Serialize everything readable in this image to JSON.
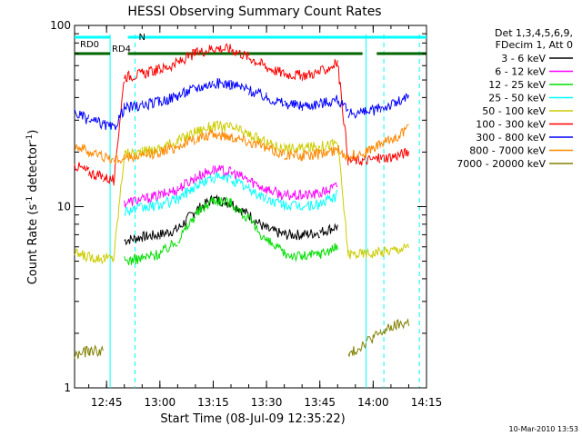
{
  "chart_data": {
    "type": "line",
    "title": "HESSI Observing Summary Count Rates",
    "xlabel": "Start Time (08-Jul-09 12:35:22)",
    "ylabel_main": "Count Rate (s",
    "ylabel_sup1": "-1",
    "ylabel_mid": " detector",
    "ylabel_sup2": "-1",
    "ylabel_end": ")",
    "yscale": "log",
    "ylim": [
      1,
      100
    ],
    "xlim_minutes": [
      36.0,
      135.0
    ],
    "x_ticks": [
      {
        "label": "12:45",
        "minute": 45
      },
      {
        "label": "13:00",
        "minute": 60
      },
      {
        "label": "13:15",
        "minute": 75
      },
      {
        "label": "13:30",
        "minute": 90
      },
      {
        "label": "13:45",
        "minute": 105
      },
      {
        "label": "14:00",
        "minute": 120
      },
      {
        "label": "14:15",
        "minute": 135
      }
    ],
    "y_ticks": [
      {
        "label": "1",
        "value": 1
      },
      {
        "label": "10",
        "value": 10
      },
      {
        "label": "100",
        "value": 100
      }
    ],
    "legend_header": [
      "Det 1,3,4,5,6,9,",
      "FDecim 1, Att 0"
    ],
    "legend_position": "right",
    "x_minutes": [
      36,
      40,
      44,
      47,
      50,
      55,
      60,
      65,
      70,
      75,
      80,
      85,
      90,
      95,
      100,
      105,
      110,
      113,
      118,
      122,
      126,
      130,
      135
    ],
    "series": [
      {
        "name": "3 - 6 keV",
        "color": "#000000",
        "values": [
          null,
          null,
          null,
          null,
          6.5,
          6.8,
          7.0,
          7.5,
          9.5,
          11.0,
          10.5,
          9.0,
          7.5,
          7.0,
          7.0,
          7.2,
          7.8,
          null,
          null,
          null,
          null,
          null,
          null
        ]
      },
      {
        "name": "6 - 12 keV",
        "color": "#ff00ff",
        "values": [
          null,
          null,
          null,
          null,
          10.5,
          11.0,
          11.5,
          12.5,
          14.5,
          16.0,
          15.5,
          14.0,
          12.5,
          11.5,
          11.5,
          11.8,
          13.0,
          null,
          null,
          null,
          null,
          null,
          null
        ]
      },
      {
        "name": "12 - 25 keV",
        "color": "#00dd00",
        "values": [
          null,
          null,
          null,
          null,
          5.0,
          5.2,
          5.5,
          6.5,
          9.0,
          11.0,
          10.5,
          8.5,
          6.5,
          5.5,
          5.3,
          5.5,
          6.0,
          null,
          null,
          null,
          null,
          null,
          null
        ]
      },
      {
        "name": "25 - 50 keV",
        "color": "#00ffff",
        "values": [
          null,
          null,
          null,
          null,
          9.5,
          9.8,
          10.2,
          11.0,
          13.0,
          14.5,
          14.2,
          12.5,
          11.0,
          10.2,
          10.0,
          10.3,
          11.5,
          null,
          null,
          null,
          null,
          null,
          null
        ]
      },
      {
        "name": "50 - 100 keV",
        "color": "#cccc00",
        "values": [
          5.5,
          5.3,
          5.2,
          5.2,
          19.5,
          20.0,
          21.0,
          23.0,
          26.0,
          28.0,
          27.5,
          25.0,
          22.5,
          21.0,
          21.0,
          21.5,
          22.5,
          5.5,
          5.5,
          5.6,
          5.8,
          6.0,
          null
        ]
      },
      {
        "name": "100 - 300 keV",
        "color": "#ff0000",
        "values": [
          17.0,
          15.5,
          14.5,
          14.0,
          52.0,
          54.0,
          57.0,
          62.0,
          70.0,
          75.0,
          74.0,
          67.0,
          59.0,
          54.0,
          53.0,
          55.0,
          62.0,
          18.0,
          18.0,
          18.5,
          19.0,
          20.0,
          null
        ]
      },
      {
        "name": "300 - 800 keV",
        "color": "#0000ff",
        "values": [
          33.0,
          30.0,
          28.5,
          27.0,
          35.0,
          36.0,
          38.0,
          41.0,
          45.0,
          48.0,
          47.5,
          44.0,
          40.0,
          37.0,
          36.0,
          37.0,
          39.0,
          33.0,
          33.0,
          35.0,
          37.0,
          40.0,
          null
        ]
      },
      {
        "name": "800 - 7000 keV",
        "color": "#ff8800",
        "values": [
          22.0,
          20.0,
          19.0,
          18.0,
          18.5,
          19.0,
          20.0,
          21.5,
          23.5,
          25.0,
          24.5,
          23.0,
          21.0,
          19.5,
          19.0,
          19.5,
          20.5,
          19.0,
          20.0,
          22.0,
          24.0,
          27.0,
          null
        ]
      },
      {
        "name": "7000 - 20000 keV",
        "color": "#808000",
        "values": [
          1.5,
          1.6,
          1.6,
          null,
          null,
          null,
          null,
          null,
          null,
          null,
          null,
          null,
          null,
          null,
          null,
          null,
          null,
          1.5,
          1.8,
          2.0,
          2.2,
          2.3,
          null
        ]
      }
    ],
    "flag_bars": [
      {
        "name": "RD0",
        "color": "#00ffff",
        "segments": [
          [
            36,
            46
          ],
          [
            51,
            135
          ]
        ]
      },
      {
        "name": "RD4",
        "color": "#006600",
        "segments": [
          [
            36,
            46
          ],
          [
            51,
            117
          ],
          [
            121,
            135
          ]
        ]
      }
    ],
    "flag_markers": [
      {
        "name": "N",
        "color": "#00ffff",
        "minute": 53
      }
    ],
    "vertical_markers": [
      {
        "minute": 46,
        "style": "solid",
        "color": "#00ffff"
      },
      {
        "minute": 53,
        "style": "dashed",
        "color": "#00ffff"
      },
      {
        "minute": 118,
        "style": "solid",
        "color": "#00ffff"
      },
      {
        "minute": 123,
        "style": "dashed",
        "color": "#00ffff"
      },
      {
        "minute": 133,
        "style": "dashed",
        "color": "#00ffff"
      }
    ],
    "footer_timestamp": "10-Mar-2010 13:53"
  }
}
